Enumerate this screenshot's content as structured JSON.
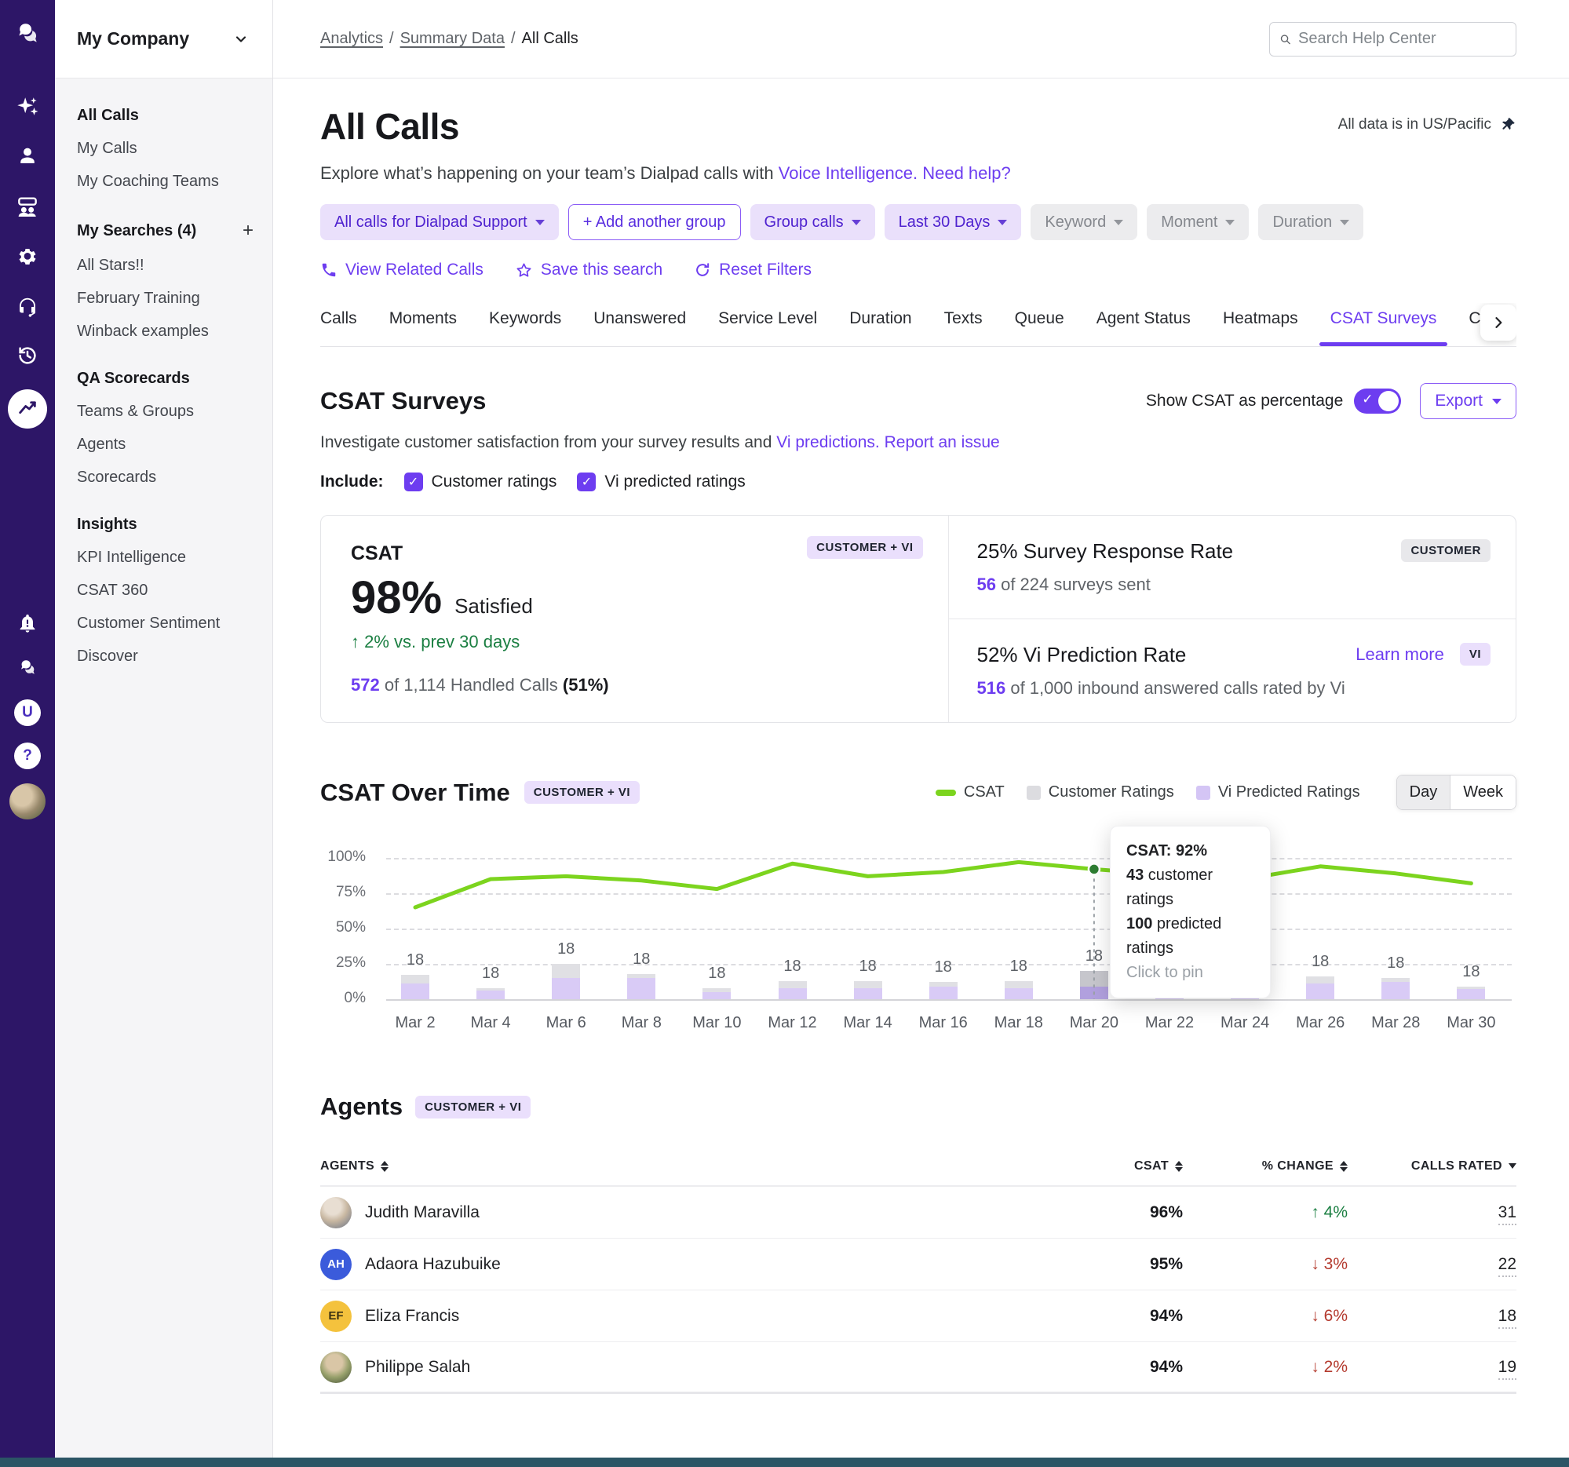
{
  "icons": {
    "check": "✓",
    "plus": "+",
    "arrow_up": "↑",
    "arrow_down": "↓"
  },
  "sidebar": {
    "company": "My Company",
    "sections": [
      {
        "title": "All Calls",
        "items": [
          "My Calls",
          "My Coaching Teams"
        ]
      },
      {
        "title": "My Searches (4)",
        "items": [
          "All Stars!!",
          "February Training",
          "Winback examples"
        ]
      },
      {
        "title": "QA Scorecards",
        "items": [
          "Teams & Groups",
          "Agents",
          "Scorecards"
        ]
      },
      {
        "title": "Insights",
        "items": [
          "KPI Intelligence",
          "CSAT 360",
          "Customer Sentiment",
          "Discover"
        ]
      }
    ]
  },
  "header": {
    "breadcrumb": [
      "Analytics",
      "Summary Data",
      "All Calls"
    ],
    "separator": "/",
    "search_placeholder": "Search Help Center"
  },
  "page": {
    "title": "All Calls",
    "timezone_note": "All data is in US/Pacific",
    "subtitle": {
      "prefix": "Explore what’s happening on your team’s Dialpad calls with ",
      "link1": "Voice Intelligence.",
      "link2": "Need help?"
    }
  },
  "filters": {
    "chips": [
      {
        "label": "All calls for Dialpad Support"
      },
      {
        "label": "+  Add another group"
      },
      {
        "label": "Group calls"
      },
      {
        "label": "Last 30 Days"
      },
      {
        "label": "Keyword"
      },
      {
        "label": "Moment"
      },
      {
        "label": "Duration"
      }
    ],
    "actions": [
      {
        "label": "View Related Calls"
      },
      {
        "label": "Save this search"
      },
      {
        "label": "Reset Filters"
      }
    ]
  },
  "tabs": [
    "Calls",
    "Moments",
    "Keywords",
    "Unanswered",
    "Service Level",
    "Duration",
    "Texts",
    "Queue",
    "Agent Status",
    "Heatmaps",
    "CSAT Surveys",
    "Concurrent C"
  ],
  "csat_section": {
    "title": "CSAT Surveys",
    "toggle_label": "Show CSAT as percentage",
    "export_label": "Export",
    "description": {
      "prefix": "Investigate customer satisfaction from your survey results and ",
      "link1": "Vi predictions.",
      "link2": "Report an issue"
    },
    "include_label": "Include:",
    "checkboxes": [
      "Customer ratings",
      "Vi predicted ratings"
    ]
  },
  "cards": {
    "csat": {
      "title": "CSAT",
      "badge": "CUSTOMER + VI",
      "value": "98%",
      "value_label": "Satisfied",
      "change": " 2% vs. prev 30 days",
      "footer_count": "572",
      "footer_text": " of 1,114 Handled Calls ",
      "footer_pct": "(51%)"
    },
    "response": {
      "title": "25% Survey Response Rate",
      "badge": "CUSTOMER",
      "count": "56",
      "text": " of 224 surveys sent"
    },
    "prediction": {
      "title": "52% Vi Prediction Rate",
      "badge": "VI",
      "link": "Learn more",
      "count": "516",
      "text": " of 1,000 inbound answered calls rated by Vi"
    }
  },
  "chart": {
    "title": "CSAT Over Time",
    "badge": "CUSTOMER + VI",
    "legend": [
      {
        "label": "CSAT"
      },
      {
        "label": "Customer Ratings"
      },
      {
        "label": "Vi Predicted Ratings"
      }
    ],
    "toggle": {
      "day": "Day",
      "week": "Week",
      "selected": "Day"
    },
    "tooltip": {
      "title": "CSAT: 92%",
      "v1": "43",
      "l1": " customer ratings",
      "v2": "100",
      "l2": " predicted ratings",
      "hint": "Click to pin"
    }
  },
  "chart_data": {
    "type": "line",
    "subtype": "line-over-stacked-bars",
    "categories": [
      "Mar 2",
      "Mar 4",
      "Mar 6",
      "Mar 8",
      "Mar 10",
      "Mar 12",
      "Mar 14",
      "Mar 16",
      "Mar 18",
      "Mar 20",
      "Mar 22",
      "Mar 24",
      "Mar 26",
      "Mar 28",
      "Mar 30"
    ],
    "series": [
      {
        "name": "CSAT",
        "type": "line",
        "unit": "%",
        "color": "#7cd41e",
        "values": [
          65,
          85,
          87,
          84,
          78,
          96,
          87,
          90,
          97,
          92,
          88,
          85,
          94,
          89,
          82
        ]
      },
      {
        "name": "Vi Predicted Ratings",
        "type": "bar",
        "unit": "%",
        "color": "#d9cbf6",
        "values": [
          11,
          6,
          15,
          15,
          5,
          8,
          8,
          9,
          8,
          9,
          8,
          8,
          11,
          12,
          7
        ]
      },
      {
        "name": "Customer Ratings",
        "type": "bar",
        "unit": "%",
        "color": "#e0e0e4",
        "values": [
          6,
          2,
          10,
          3,
          3,
          5,
          5,
          3,
          5,
          11,
          5,
          4,
          5,
          3,
          2
        ]
      }
    ],
    "bar_total_labels": [
      "18",
      "18",
      "18",
      "18",
      "18",
      "18",
      "18",
      "18",
      "18",
      "18",
      "18",
      "18",
      "18",
      "18",
      "18"
    ],
    "yticks": [
      {
        "label": "0%",
        "value": 0
      },
      {
        "label": "25%",
        "value": 25
      },
      {
        "label": "50%",
        "value": 50
      },
      {
        "label": "75%",
        "value": 75
      },
      {
        "label": "100%",
        "value": 100
      }
    ],
    "ylim": [
      0,
      100
    ],
    "grid": "dashed-horizontal",
    "legend_position": "top-right",
    "highlight_index": 9,
    "highlight_point": {
      "category": "Mar 20",
      "csat_pct": 92,
      "customer_ratings": 43,
      "predicted_ratings": 100
    }
  },
  "agents": {
    "title": "Agents",
    "badge": "CUSTOMER + VI",
    "columns": [
      "AGENTS",
      "CSAT",
      "% CHANGE",
      "CALLS RATED"
    ],
    "rows": [
      {
        "name": "Judith Maravilla",
        "avatar_type": "photo",
        "csat": "96%",
        "change": " 4%",
        "change_dir": "up",
        "calls_rated": "31"
      },
      {
        "name": "Adaora Hazubuike",
        "avatar_type": "initials",
        "initials": "AH",
        "avatar_color": "#3b5bdb",
        "csat": "95%",
        "change": " 3%",
        "change_dir": "down",
        "calls_rated": "22"
      },
      {
        "name": "Eliza Francis",
        "avatar_type": "initials",
        "initials": "EF",
        "avatar_color": "#f4c23d",
        "csat": "94%",
        "change": " 6%",
        "change_dir": "down",
        "calls_rated": "18"
      },
      {
        "name": "Philippe Salah",
        "avatar_type": "photo",
        "csat": "94%",
        "change": " 2%",
        "change_dir": "down",
        "calls_rated": "19"
      }
    ]
  }
}
